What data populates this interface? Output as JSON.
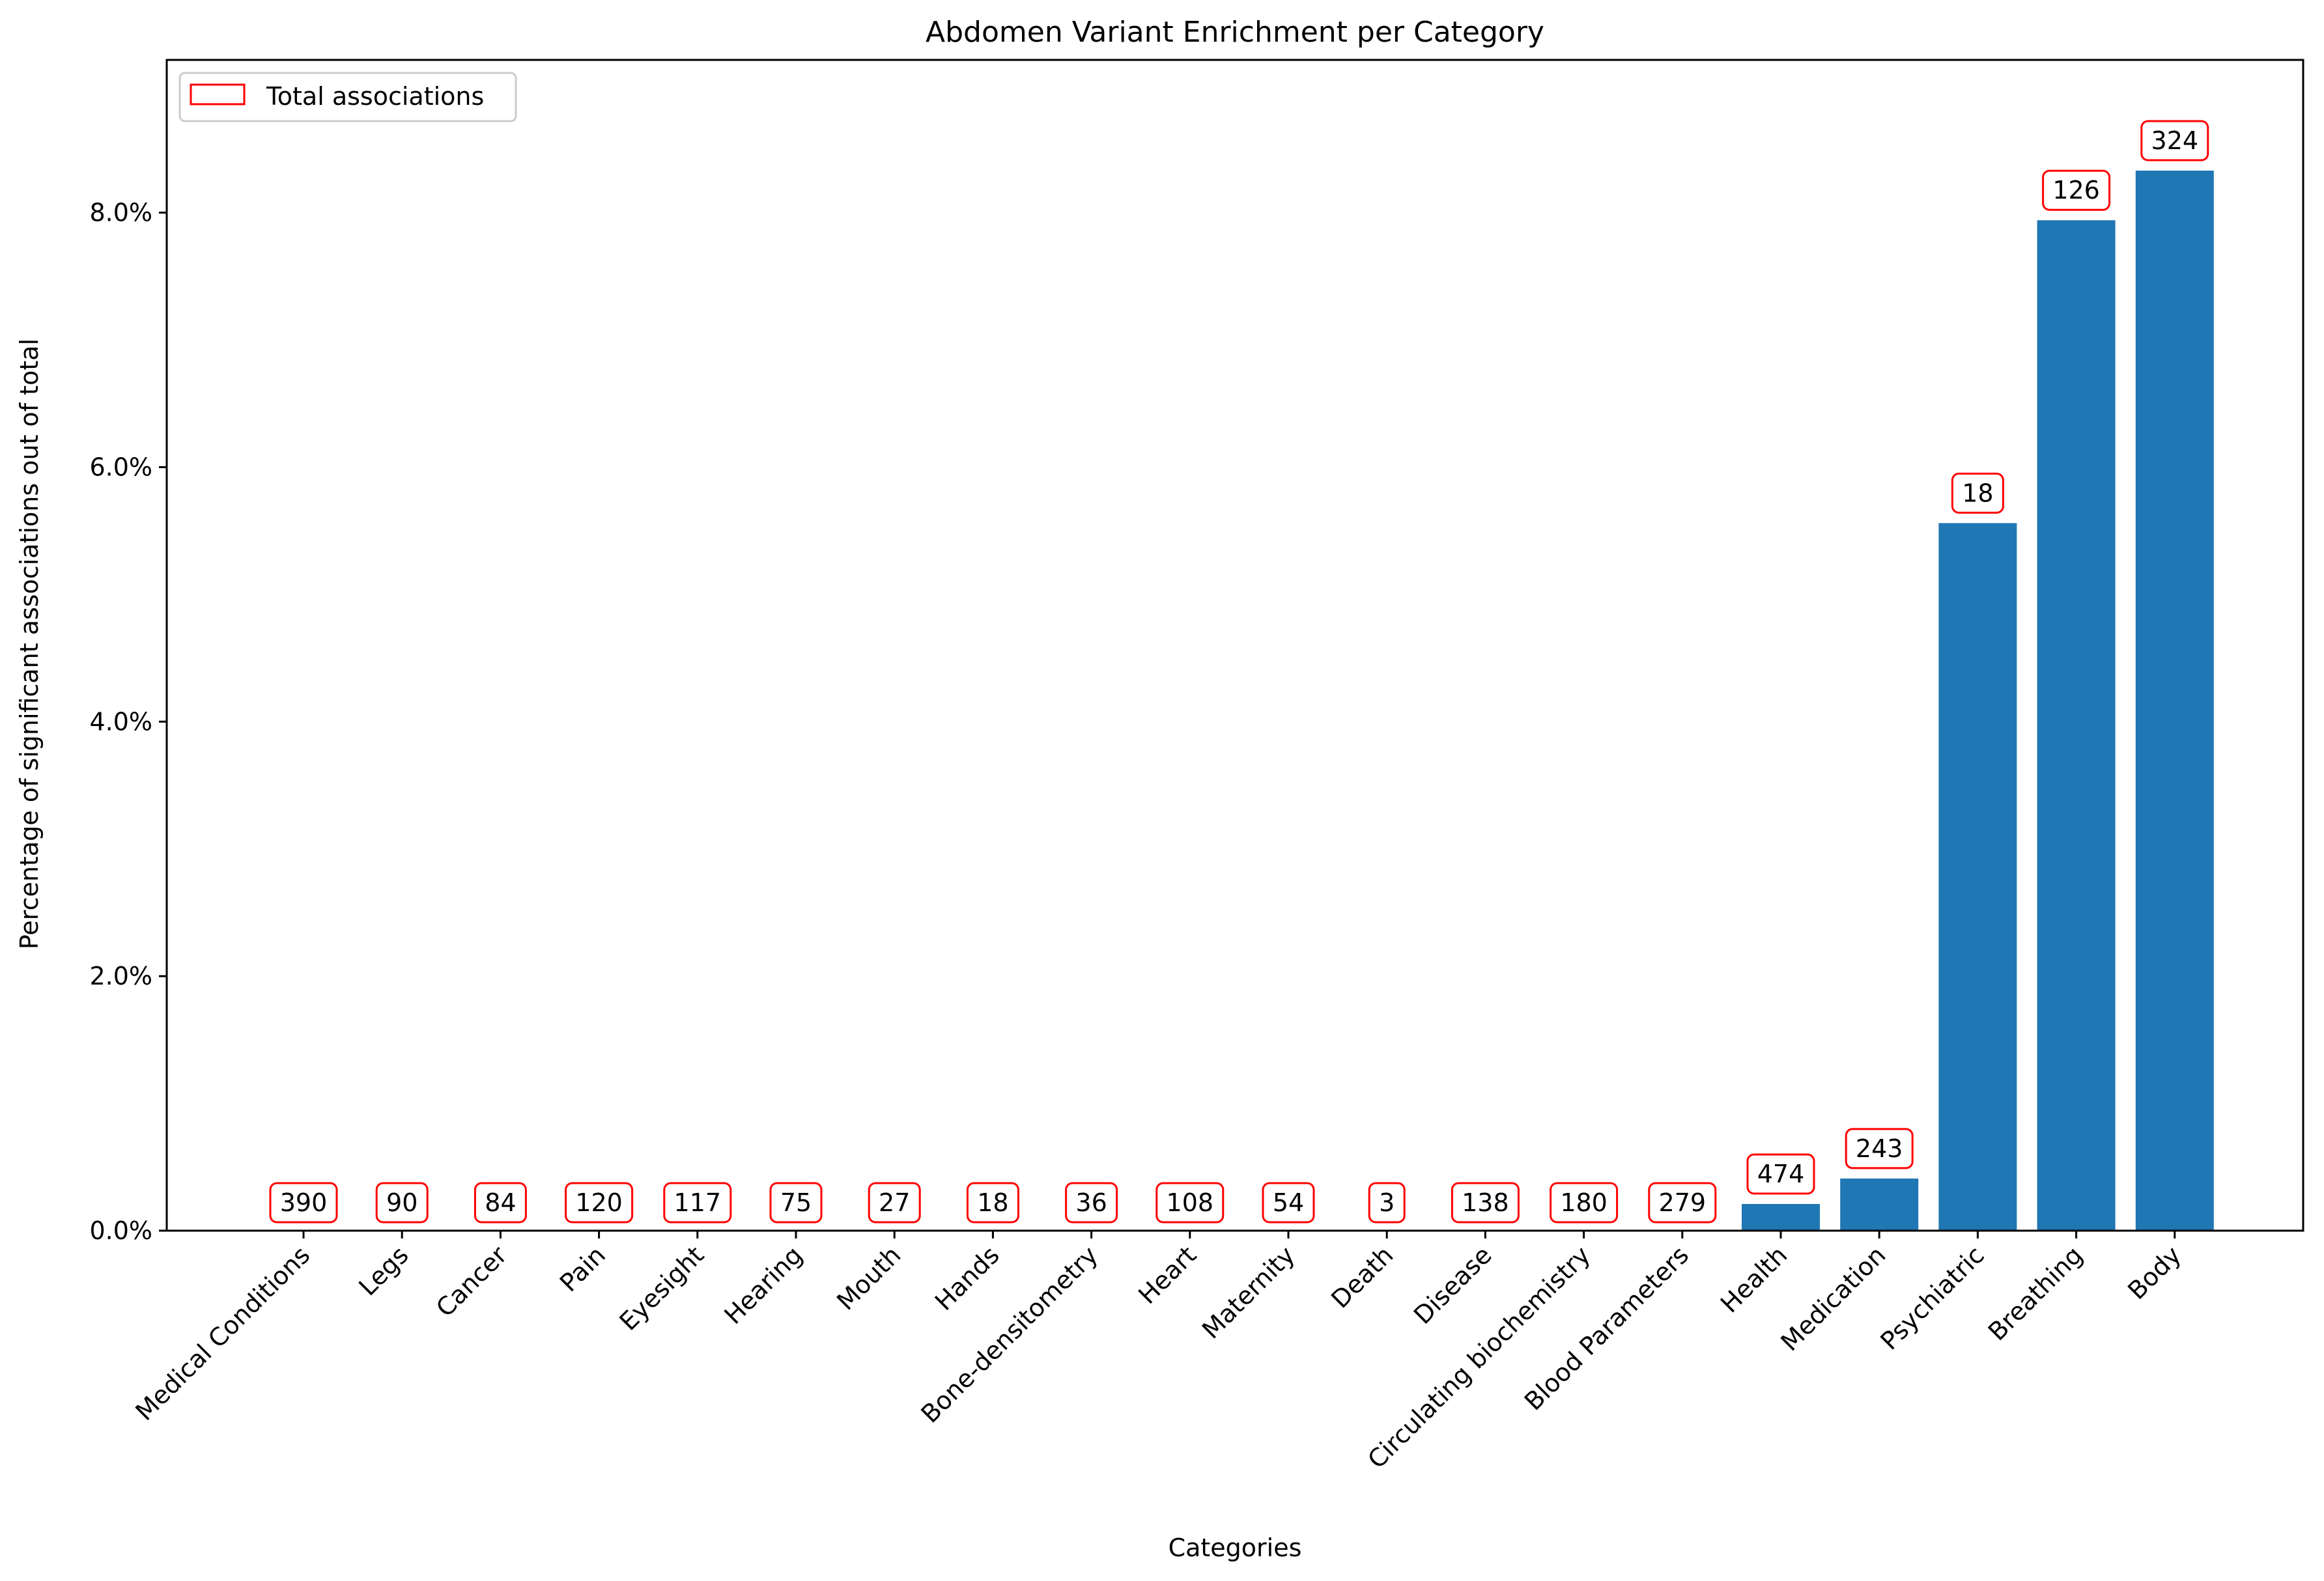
{
  "chart_data": {
    "type": "bar",
    "title": "Abdomen Variant Enrichment per Category",
    "xlabel": "Categories",
    "ylabel": "Percentage of significant associations out of total",
    "ylim": [
      0,
      9.2
    ],
    "yticks": [
      0,
      2,
      4,
      6,
      8
    ],
    "ytick_labels": [
      "0.0%",
      "2.0%",
      "4.0%",
      "6.0%",
      "8.0%"
    ],
    "categories": [
      "Medical Conditions",
      "Legs",
      "Cancer",
      "Pain",
      "Eyesight",
      "Hearing",
      "Mouth",
      "Hands",
      "Bone-densitometry",
      "Heart",
      "Maternity",
      "Death",
      "Disease",
      "Circulating biochemistry",
      "Blood Parameters",
      "Health",
      "Medication",
      "Psychiatric",
      "Breathing",
      "Body"
    ],
    "values": [
      0,
      0,
      0,
      0,
      0,
      0,
      0,
      0,
      0,
      0,
      0,
      0,
      0,
      0,
      0,
      0.21,
      0.41,
      5.56,
      7.94,
      8.33
    ],
    "totals": [
      "390",
      "90",
      "84",
      "120",
      "117",
      "75",
      "27",
      "18",
      "36",
      "108",
      "54",
      "3",
      "138",
      "180",
      "279",
      "474",
      "243",
      "18",
      "126",
      "324"
    ],
    "legend": {
      "label": "Total associations",
      "position": "upper left"
    },
    "colors": {
      "bar": "#1f77b4",
      "annotation_border": "#ff0000"
    },
    "grid": false
  }
}
